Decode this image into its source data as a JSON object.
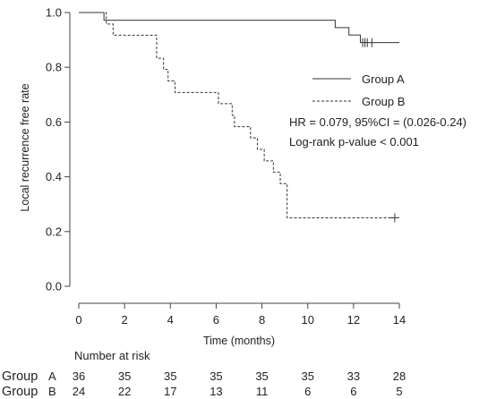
{
  "chart_data": {
    "type": "line",
    "xlabel": "Time (months)",
    "ylabel": "Local recurrence free rate",
    "xlim": [
      -0.8,
      14.6
    ],
    "ylim": [
      -0.07,
      1.01
    ],
    "x_ticks": [
      0,
      2,
      4,
      6,
      8,
      10,
      12,
      14
    ],
    "x_tick_labels": [
      "0",
      "2",
      "4",
      "6",
      "8",
      "10",
      "12",
      "14"
    ],
    "y_ticks": [
      0,
      0.2,
      0.4,
      0.6,
      0.8,
      1.0
    ],
    "y_tick_labels": [
      "0.0",
      "0.2",
      "0.4",
      "0.6",
      "0.8",
      "1.0"
    ],
    "grid": false,
    "legend_position": "right",
    "series": [
      {
        "name": "Group A",
        "line_style": "solid",
        "color": "#333333",
        "steps": [
          [
            0,
            1.0
          ],
          [
            1.1,
            0.972
          ],
          [
            11.2,
            0.945
          ],
          [
            11.8,
            0.918
          ],
          [
            12.3,
            0.89
          ],
          [
            14.0,
            0.89
          ]
        ],
        "censored": [
          [
            12.4,
            0.89
          ],
          [
            12.5,
            0.89
          ],
          [
            12.6,
            0.89
          ],
          [
            12.8,
            0.89
          ]
        ]
      },
      {
        "name": "Group B",
        "line_style": "dashed",
        "color": "#333333",
        "steps": [
          [
            0,
            1.0
          ],
          [
            1.2,
            0.958
          ],
          [
            1.5,
            0.917
          ],
          [
            3.4,
            0.833
          ],
          [
            3.7,
            0.792
          ],
          [
            3.9,
            0.75
          ],
          [
            4.2,
            0.708
          ],
          [
            6.1,
            0.667
          ],
          [
            6.7,
            0.625
          ],
          [
            6.8,
            0.583
          ],
          [
            7.5,
            0.542
          ],
          [
            7.8,
            0.5
          ],
          [
            8.1,
            0.458
          ],
          [
            8.5,
            0.417
          ],
          [
            8.8,
            0.375
          ],
          [
            9.1,
            0.25
          ],
          [
            13.8,
            0.25
          ]
        ],
        "censored": [
          [
            13.8,
            0.25
          ]
        ]
      }
    ],
    "annotations": [
      "HR = 0.079, 95%CI = (0.026-0.24)",
      "Log-rank p-value < 0.001"
    ],
    "risk_table": {
      "title": "Number at risk",
      "times": [
        0,
        2,
        4,
        6,
        8,
        10,
        12,
        14
      ],
      "rows": [
        {
          "label": "Group",
          "group": "A",
          "values": [
            36,
            35,
            35,
            35,
            35,
            35,
            33,
            28
          ]
        },
        {
          "label": "Group",
          "group": "B",
          "values": [
            24,
            22,
            17,
            13,
            11,
            6,
            6,
            5
          ]
        }
      ]
    }
  }
}
